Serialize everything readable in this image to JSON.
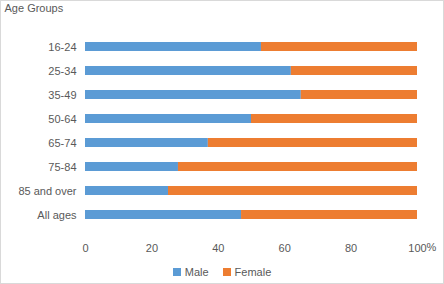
{
  "chart_data": {
    "type": "bar",
    "orientation": "horizontal",
    "stacked": true,
    "y_label": "Age Groups",
    "x_label": "%",
    "categories": [
      "16-24",
      "25-34",
      "35-49",
      "50-64",
      "65-74",
      "75-84",
      "85 and over",
      "All ages"
    ],
    "series": [
      {
        "name": "Male",
        "color": "#5b9bd5",
        "values": [
          53,
          62,
          65,
          50,
          37,
          28,
          25,
          47
        ]
      },
      {
        "name": "Female",
        "color": "#ed7d31",
        "values": [
          47,
          38,
          35,
          50,
          63,
          72,
          75,
          53
        ]
      }
    ],
    "xlim": [
      0,
      100
    ],
    "xticks": [
      0,
      20,
      40,
      60,
      80,
      100
    ],
    "grid": false,
    "legend": "bottom"
  }
}
